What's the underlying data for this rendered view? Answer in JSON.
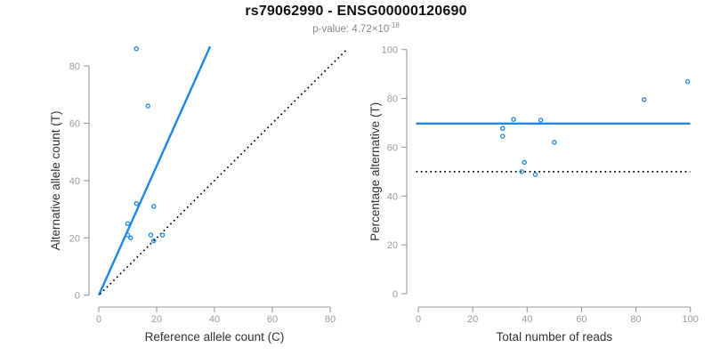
{
  "header": {
    "title": "rs79062990 - ENSG00000120690",
    "pvalue_prefix": "p-value: 4.72×10",
    "pvalue_exponent": "-18"
  },
  "colors": {
    "accent_blue": "#1E88E5",
    "line_black": "#000000",
    "axis_gray": "#9B9B9B",
    "tick_label_gray": "#9B9B9B",
    "axis_title_dark": "#333333",
    "title_black": "#111111",
    "subtitle_gray": "#8A8A8A",
    "background": "#FFFFFF"
  },
  "chart_data": [
    {
      "type": "scatter",
      "panel": "left",
      "xlabel": "Reference allele count (C)",
      "ylabel": "Alternative allele count (T)",
      "xticks": [
        0,
        20,
        40,
        60,
        80
      ],
      "yticks": [
        0,
        20,
        40,
        60,
        80
      ],
      "xlim": [
        0,
        88
      ],
      "ylim": [
        0,
        88
      ],
      "grid": false,
      "legend": "none",
      "points": [
        [
          13,
          86
        ],
        [
          17,
          66
        ],
        [
          13,
          32
        ],
        [
          19,
          31
        ],
        [
          10,
          25
        ],
        [
          10,
          21
        ],
        [
          11,
          20
        ],
        [
          18,
          21
        ],
        [
          19,
          19
        ],
        [
          22,
          21
        ]
      ],
      "lines": [
        {
          "name": "regression-line",
          "style": "solid",
          "color": "#1E88E5",
          "x1": 0,
          "y1": 0,
          "x2": 38.5,
          "y2": 86.8
        },
        {
          "name": "identity-line",
          "style": "dotted",
          "color": "#000000",
          "x1": 0.4,
          "y1": 0.4,
          "x2": 85.5,
          "y2": 85.5
        }
      ]
    },
    {
      "type": "scatter",
      "panel": "right",
      "xlabel": "Total number of reads",
      "ylabel": "Percentage alternative (T)",
      "xticks": [
        0,
        20,
        40,
        60,
        80,
        100
      ],
      "yticks": [
        0,
        20,
        40,
        60,
        80,
        100
      ],
      "xlim": [
        0,
        100
      ],
      "ylim": [
        0,
        100
      ],
      "grid": false,
      "legend": "none",
      "points": [
        [
          99,
          86.9
        ],
        [
          83,
          79.5
        ],
        [
          45,
          71.1
        ],
        [
          50,
          62.0
        ],
        [
          35,
          71.4
        ],
        [
          31,
          67.7
        ],
        [
          31,
          64.5
        ],
        [
          39,
          53.8
        ],
        [
          38,
          50.0
        ],
        [
          43,
          48.8
        ]
      ],
      "lines": [
        {
          "name": "mean-percentage-line",
          "style": "solid",
          "color": "#1E88E5",
          "h": 69.7
        },
        {
          "name": "fifty-percent-line",
          "style": "dotted",
          "color": "#000000",
          "h": 50
        }
      ]
    }
  ]
}
